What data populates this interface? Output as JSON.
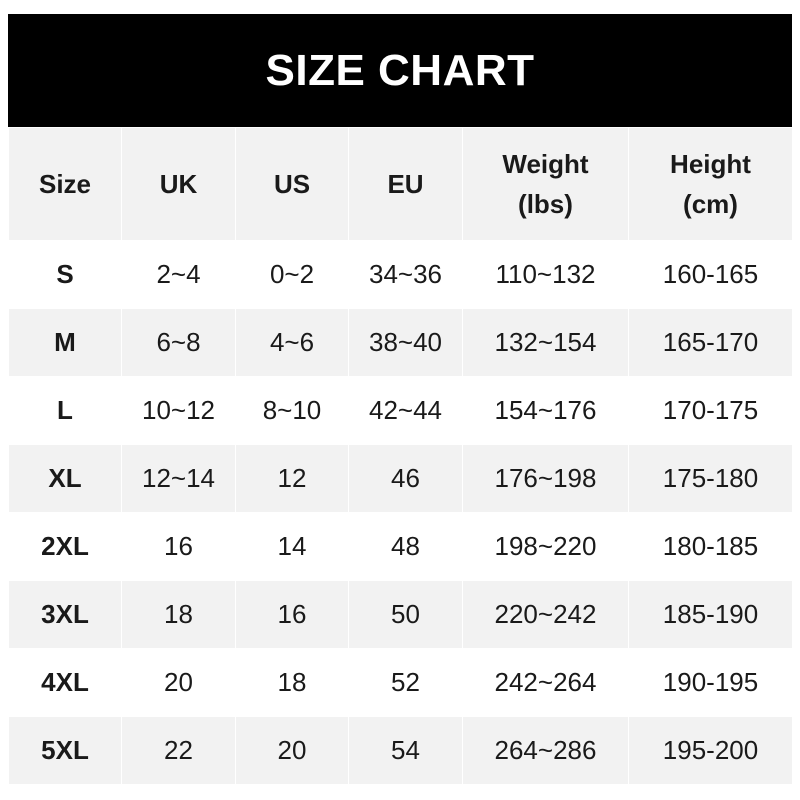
{
  "title": "SIZE CHART",
  "headers": [
    {
      "line1": "Size",
      "line2": ""
    },
    {
      "line1": "UK",
      "line2": ""
    },
    {
      "line1": "US",
      "line2": ""
    },
    {
      "line1": "EU",
      "line2": ""
    },
    {
      "line1": "Weight",
      "line2": "(lbs)"
    },
    {
      "line1": "Height",
      "line2": "(cm)"
    }
  ],
  "rows": [
    [
      "S",
      "2~4",
      "0~2",
      "34~36",
      "110~132",
      "160-165"
    ],
    [
      "M",
      "6~8",
      "4~6",
      "38~40",
      "132~154",
      "165-170"
    ],
    [
      "L",
      "10~12",
      "8~10",
      "42~44",
      "154~176",
      "170-175"
    ],
    [
      "XL",
      "12~14",
      "12",
      "46",
      "176~198",
      "175-180"
    ],
    [
      "2XL",
      "16",
      "14",
      "48",
      "198~220",
      "180-185"
    ],
    [
      "3XL",
      "18",
      "16",
      "50",
      "220~242",
      "185-190"
    ],
    [
      "4XL",
      "20",
      "18",
      "52",
      "242~264",
      "190-195"
    ],
    [
      "5XL",
      "22",
      "20",
      "54",
      "264~286",
      "195-200"
    ]
  ],
  "colors": {
    "header_bg": "#000000",
    "stripe": "#f2f2f2"
  }
}
